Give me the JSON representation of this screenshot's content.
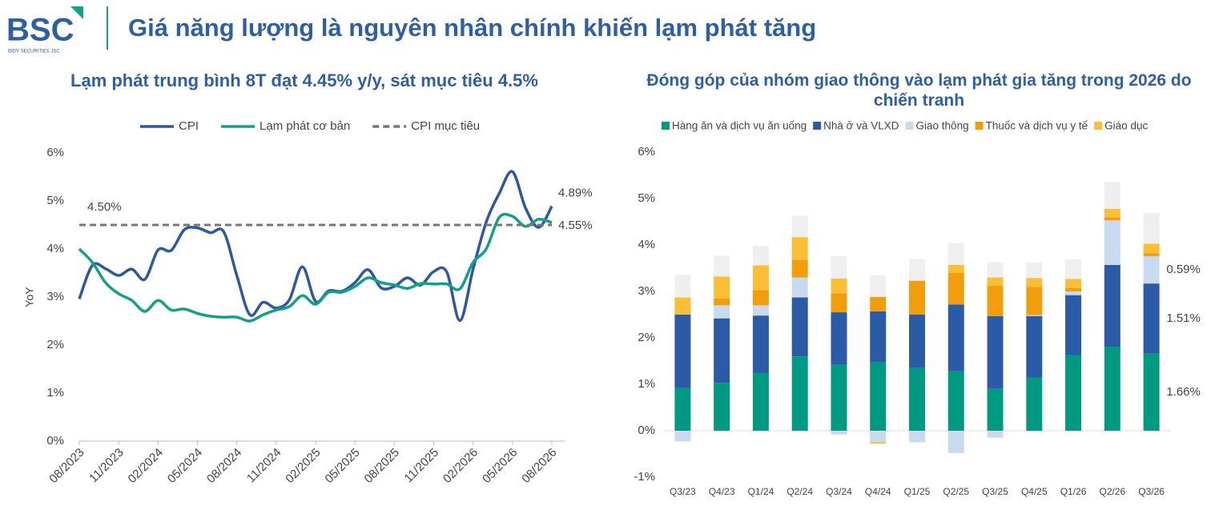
{
  "header": {
    "logo": "BSC",
    "logo_sub": "BIDV SECURITIES JSC",
    "title": "Giá năng lượng là nguyên nhân chính khiến lạm phát tăng"
  },
  "chart_data": [
    {
      "type": "line",
      "title": "Lạm phát trung bình 8T đạt 4.45% y/y, sát mục tiêu 4.5%",
      "ylabel": "YoY",
      "categories": [
        "08/2023",
        null,
        null,
        "11/2023",
        null,
        null,
        "02/2024",
        null,
        null,
        "05/2024",
        null,
        null,
        "08/2024",
        null,
        null,
        "11/2024",
        null,
        null,
        "02/2025",
        null,
        null,
        "05/2025",
        null,
        null,
        "08/2025",
        null,
        null,
        "11/2025",
        null,
        null,
        "02/2026",
        null,
        null,
        "05/2026",
        null,
        null,
        "08/2026"
      ],
      "series": [
        {
          "name": "CPI",
          "color": "#2e58a0",
          "values": [
            2.96,
            3.66,
            3.59,
            3.45,
            3.58,
            3.37,
            3.98,
            3.97,
            4.4,
            4.44,
            4.34,
            4.36,
            3.45,
            2.63,
            2.89,
            2.77,
            2.94,
            3.63,
            2.91,
            3.13,
            3.12,
            3.3,
            3.57,
            3.19,
            3.22,
            3.4,
            3.25,
            3.53,
            3.52,
            2.51,
            3.58,
            4.56,
            5.16,
            5.61,
            4.85,
            4.45,
            4.89
          ]
        },
        {
          "name": "Lạm phát cơ bản",
          "color": "#12a08a",
          "values": [
            4.0,
            3.72,
            3.3,
            3.07,
            2.93,
            2.7,
            2.93,
            2.73,
            2.75,
            2.66,
            2.6,
            2.58,
            2.58,
            2.5,
            2.63,
            2.73,
            2.8,
            3.03,
            2.85,
            3.1,
            3.1,
            3.22,
            3.4,
            3.3,
            3.25,
            3.18,
            3.28,
            3.27,
            3.27,
            3.17,
            3.72,
            4.0,
            4.66,
            4.68,
            4.47,
            4.62,
            4.55
          ]
        },
        {
          "name": "CPI mục tiêu",
          "color": "#777777",
          "dashed": true,
          "values": [
            4.5,
            4.5,
            4.5,
            4.5,
            4.5,
            4.5,
            4.5,
            4.5,
            4.5,
            4.5,
            4.5,
            4.5,
            4.5,
            4.5,
            4.5,
            4.5,
            4.5,
            4.5,
            4.5,
            4.5,
            4.5,
            4.5,
            4.5,
            4.5,
            4.5,
            4.5,
            4.5,
            4.5,
            4.5,
            4.5,
            4.5,
            4.5,
            4.5,
            4.5,
            4.5,
            4.5,
            4.5
          ]
        }
      ],
      "annotations": [
        {
          "text": "4.50%",
          "series": 2,
          "index": 0
        },
        {
          "text": "4.89%",
          "series": 0,
          "index": 36
        },
        {
          "text": "4.55%",
          "series": 1,
          "index": 36
        }
      ],
      "ylim": [
        0,
        6
      ],
      "yticks": [
        {
          "value": 0,
          "label": "0%"
        },
        {
          "value": 1,
          "label": "1%"
        },
        {
          "value": 2,
          "label": "2%"
        },
        {
          "value": 3,
          "label": "3%"
        },
        {
          "value": 4,
          "label": "4%"
        },
        {
          "value": 5,
          "label": "5%"
        },
        {
          "value": 6,
          "label": "6%"
        }
      ],
      "legend": "top"
    },
    {
      "type": "stacked_bar",
      "title": "Đóng góp của nhóm giao thông vào lạm phát gia tăng trong 2026 do chiến tranh",
      "categories": [
        "Q3/23",
        "Q4/23",
        "Q1/24",
        "Q2/24",
        "Q3/24",
        "Q4/24",
        "Q1/25",
        "Q2/25",
        "Q3/25",
        "Q4/25",
        "Q1/26",
        "Q2/26",
        "Q3/26"
      ],
      "series": [
        {
          "name": "Hàng ăn và dịch vụ ăn uống",
          "color": "#009a82",
          "values": [
            0.92,
            1.03,
            1.25,
            1.6,
            1.42,
            1.47,
            1.35,
            1.28,
            0.9,
            1.14,
            1.63,
            1.81,
            1.66
          ],
          "value_labels": [
            null,
            null,
            null,
            null,
            null,
            null,
            null,
            null,
            null,
            null,
            null,
            null,
            "1.66%"
          ]
        },
        {
          "name": "Nhà ở và VLXD",
          "color": "#2b5aa6",
          "values": [
            1.58,
            1.39,
            1.23,
            1.27,
            1.13,
            1.1,
            1.15,
            1.44,
            1.57,
            1.33,
            1.29,
            1.76,
            1.51
          ],
          "value_labels": [
            null,
            null,
            null,
            null,
            null,
            null,
            null,
            null,
            null,
            null,
            null,
            null,
            "1.51%"
          ]
        },
        {
          "name": "Giao thông",
          "color": "#c9d9ef",
          "values": [
            -0.23,
            0.28,
            0.22,
            0.43,
            -0.08,
            -0.25,
            -0.25,
            -0.48,
            -0.15,
            0.02,
            0.08,
            0.96,
            0.59
          ],
          "value_labels": [
            null,
            null,
            null,
            null,
            null,
            null,
            null,
            null,
            null,
            null,
            null,
            null,
            "0.59%"
          ]
        },
        {
          "name": "Thuốc và dịch vụ y tế",
          "color": "#f29e0c",
          "values": [
            0,
            0.15,
            0.33,
            0.38,
            0.41,
            0.31,
            0.73,
            0.68,
            0.65,
            0.61,
            0.07,
            0.07,
            0.06
          ]
        },
        {
          "name": "Giáo dục",
          "color": "#fbbe35",
          "values": [
            0.37,
            0.47,
            0.53,
            0.49,
            0.32,
            -0.03,
            0,
            0.17,
            0.18,
            0.19,
            0.2,
            0.18,
            0.21
          ]
        },
        {
          "color": "#efefef",
          "values": [
            0.49,
            0.45,
            0.42,
            0.46,
            0.48,
            0.47,
            0.47,
            0.47,
            0.33,
            0.33,
            0.42,
            0.58,
            0.66
          ]
        }
      ],
      "ylim": [
        -1,
        6
      ],
      "yticks": [
        {
          "value": -1,
          "label": "-1%"
        },
        {
          "value": 0,
          "label": "0%"
        },
        {
          "value": 1,
          "label": "1%"
        },
        {
          "value": 2,
          "label": "2%"
        },
        {
          "value": 3,
          "label": "3%"
        },
        {
          "value": 4,
          "label": "4%"
        },
        {
          "value": 5,
          "label": "5%"
        },
        {
          "value": 6,
          "label": "6%"
        }
      ],
      "legend": "top"
    }
  ]
}
